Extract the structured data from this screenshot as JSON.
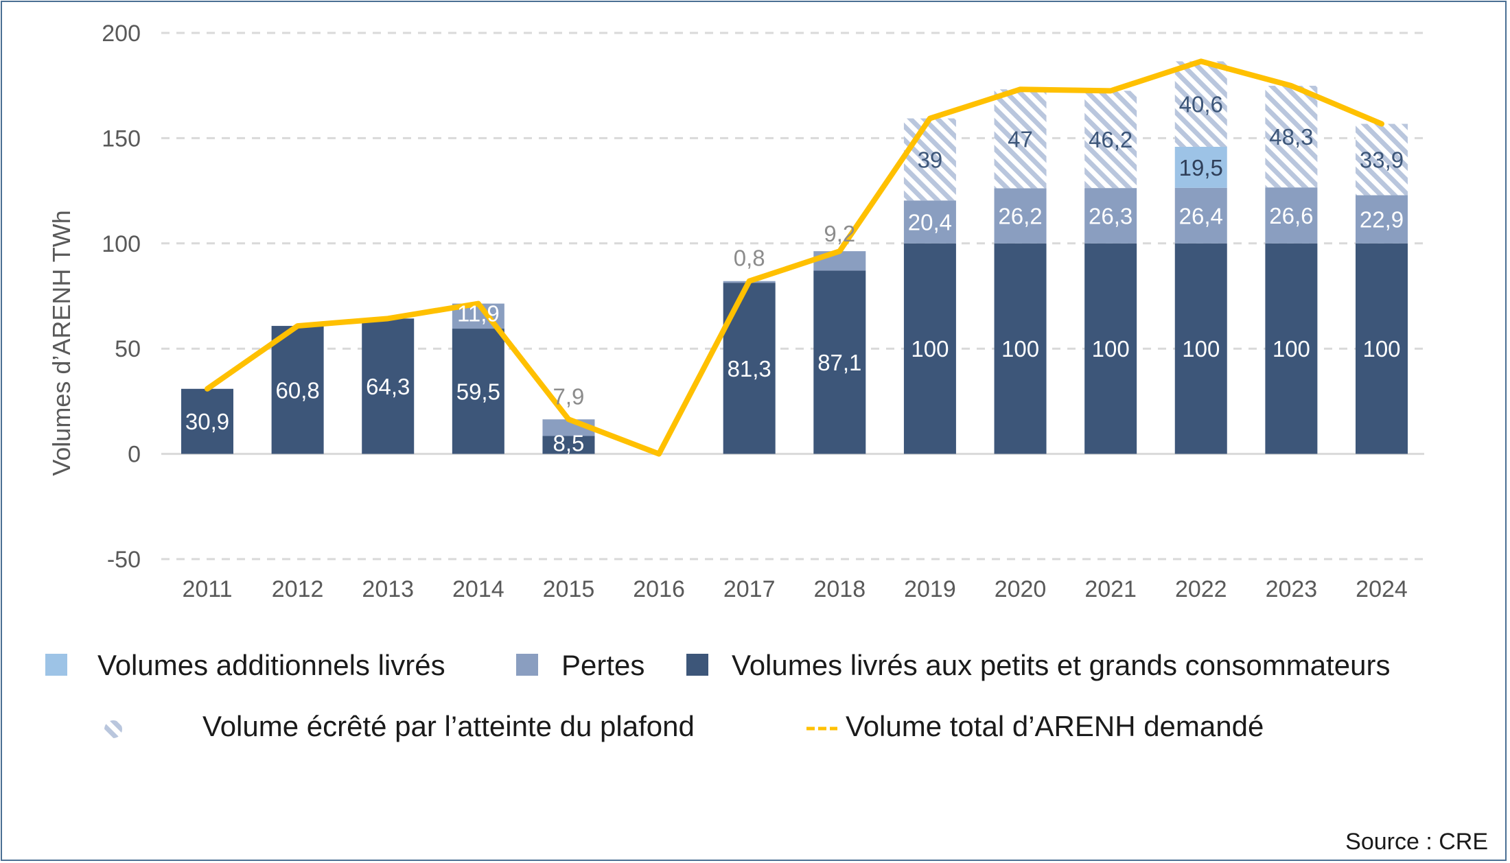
{
  "chart_data": {
    "type": "bar",
    "stacked": true,
    "categories": [
      "2011",
      "2012",
      "2013",
      "2014",
      "2015",
      "2016",
      "2017",
      "2018",
      "2019",
      "2020",
      "2021",
      "2022",
      "2023",
      "2024"
    ],
    "ylabel": "Volumes d’ARENH TWh",
    "xlabel": "",
    "ylim": [
      -50,
      200
    ],
    "yticks": [
      -50,
      0,
      50,
      100,
      150,
      200
    ],
    "grid": true,
    "series": [
      {
        "key": "livres",
        "name": "Volumes livrés aux petits et grands consommateurs",
        "kind": "bar",
        "color": "#3d5679",
        "values": [
          30.9,
          60.8,
          64.3,
          59.5,
          8.5,
          0,
          81.3,
          87.1,
          100,
          100,
          100,
          100,
          100,
          100
        ],
        "labels": [
          "30,9",
          "60,8",
          "64,3",
          "59,5",
          "8,5",
          "",
          "81,3",
          "87,1",
          "100",
          "100",
          "100",
          "100",
          "100",
          "100"
        ]
      },
      {
        "key": "pertes",
        "name": "Pertes",
        "kind": "bar",
        "color": "#8a9ec0",
        "values": [
          0,
          0,
          0,
          11.9,
          7.9,
          0,
          0.8,
          9.2,
          20.4,
          26.2,
          26.3,
          26.4,
          26.6,
          22.9
        ],
        "labels": [
          "",
          "",
          "",
          "11,9",
          "7,9",
          "",
          "0,8",
          "9,2",
          "20,4",
          "26,2",
          "26,3",
          "26,4",
          "26,6",
          "22,9"
        ]
      },
      {
        "key": "additionnels",
        "name": "Volumes additionnels livrés",
        "kind": "bar",
        "color": "#9dc3e6",
        "values": [
          0,
          0,
          0,
          0,
          0,
          0,
          0,
          0,
          0,
          0,
          0,
          19.5,
          0,
          0
        ],
        "labels": [
          "",
          "",
          "",
          "",
          "",
          "",
          "",
          "",
          "",
          "",
          "",
          "19,5",
          "",
          ""
        ]
      },
      {
        "key": "ecrete",
        "name": "Volume écrêté par l’atteinte du plafond",
        "kind": "hatched",
        "color": "#a9b8d2",
        "values": [
          0,
          0,
          0,
          0,
          0,
          0,
          0,
          0,
          39,
          47,
          46.2,
          40.6,
          48.3,
          33.9
        ],
        "labels": [
          "",
          "",
          "",
          "",
          "",
          "",
          "",
          "",
          "39",
          "47",
          "46,2",
          "40,6",
          "48,3",
          "33,9"
        ]
      },
      {
        "key": "total",
        "name": "Volume total d’ARENH demandé",
        "kind": "line",
        "color": "#ffc000",
        "values": [
          30.9,
          60.8,
          64.3,
          71.4,
          16.4,
          0,
          82.1,
          96.3,
          159.4,
          173.2,
          172.5,
          186.5,
          174.9,
          156.8
        ]
      }
    ],
    "legend_position": "bottom",
    "source": "Source : CRE"
  }
}
